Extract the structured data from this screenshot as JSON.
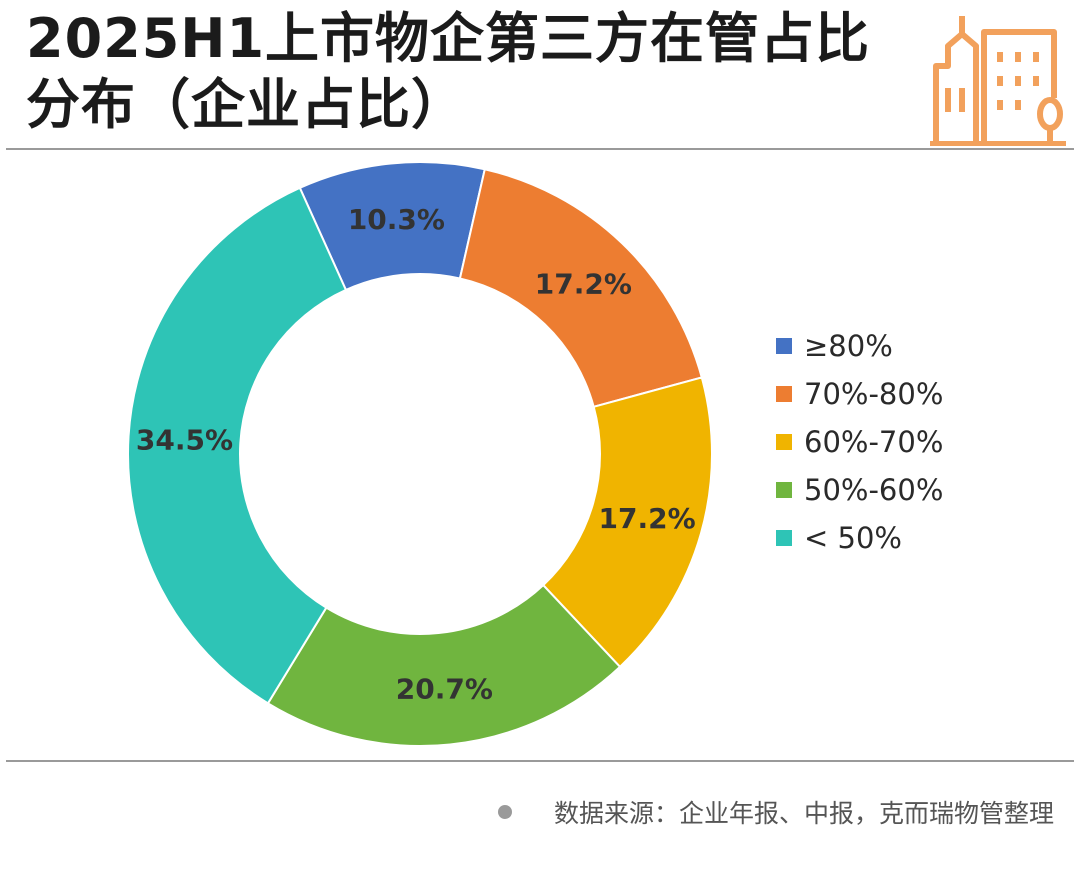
{
  "title": "2025H1上市物企第三方在管占比分布（企业占比）",
  "source": "数据来源：企业年报、中报，克而瑞物管整理",
  "logo_icon": "city-buildings-icon",
  "colors": {
    "accent": "#f2a15c",
    "rule": "#9a9a9a"
  },
  "chart_data": {
    "type": "pie",
    "title": "2025H1上市物企第三方在管占比分布（企业占比）",
    "donut": true,
    "legend_position": "right",
    "categories": [
      "≥80%",
      "70%-80%",
      "60%-70%",
      "50%-60%",
      "< 50%"
    ],
    "values": [
      10.3,
      17.2,
      17.2,
      20.7,
      34.5
    ],
    "labels": [
      "10.3%",
      "17.2%",
      "17.2%",
      "20.7%",
      "34.5%"
    ],
    "colors": [
      "#4472c4",
      "#ed7d31",
      "#f0b400",
      "#70b53f",
      "#2ec4b6"
    ]
  }
}
